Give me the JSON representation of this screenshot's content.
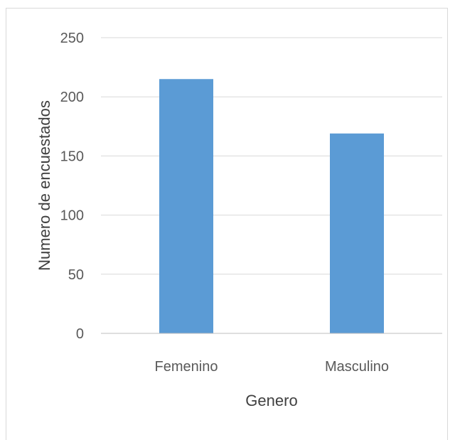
{
  "chart_data": {
    "type": "bar",
    "title": "",
    "xlabel": "Genero",
    "ylabel": "Numero de encuestados",
    "categories": [
      "Femenino",
      "Masculino"
    ],
    "values": [
      215,
      169
    ],
    "ylim": [
      0,
      250
    ],
    "yticks": [
      "0",
      "50",
      "100",
      "150",
      "200",
      "250"
    ],
    "grid": true,
    "legend": "none",
    "colors": {
      "bar": "#5b9bd5",
      "grid": "#d9d9d9",
      "axis": "#bfbfbf"
    }
  }
}
